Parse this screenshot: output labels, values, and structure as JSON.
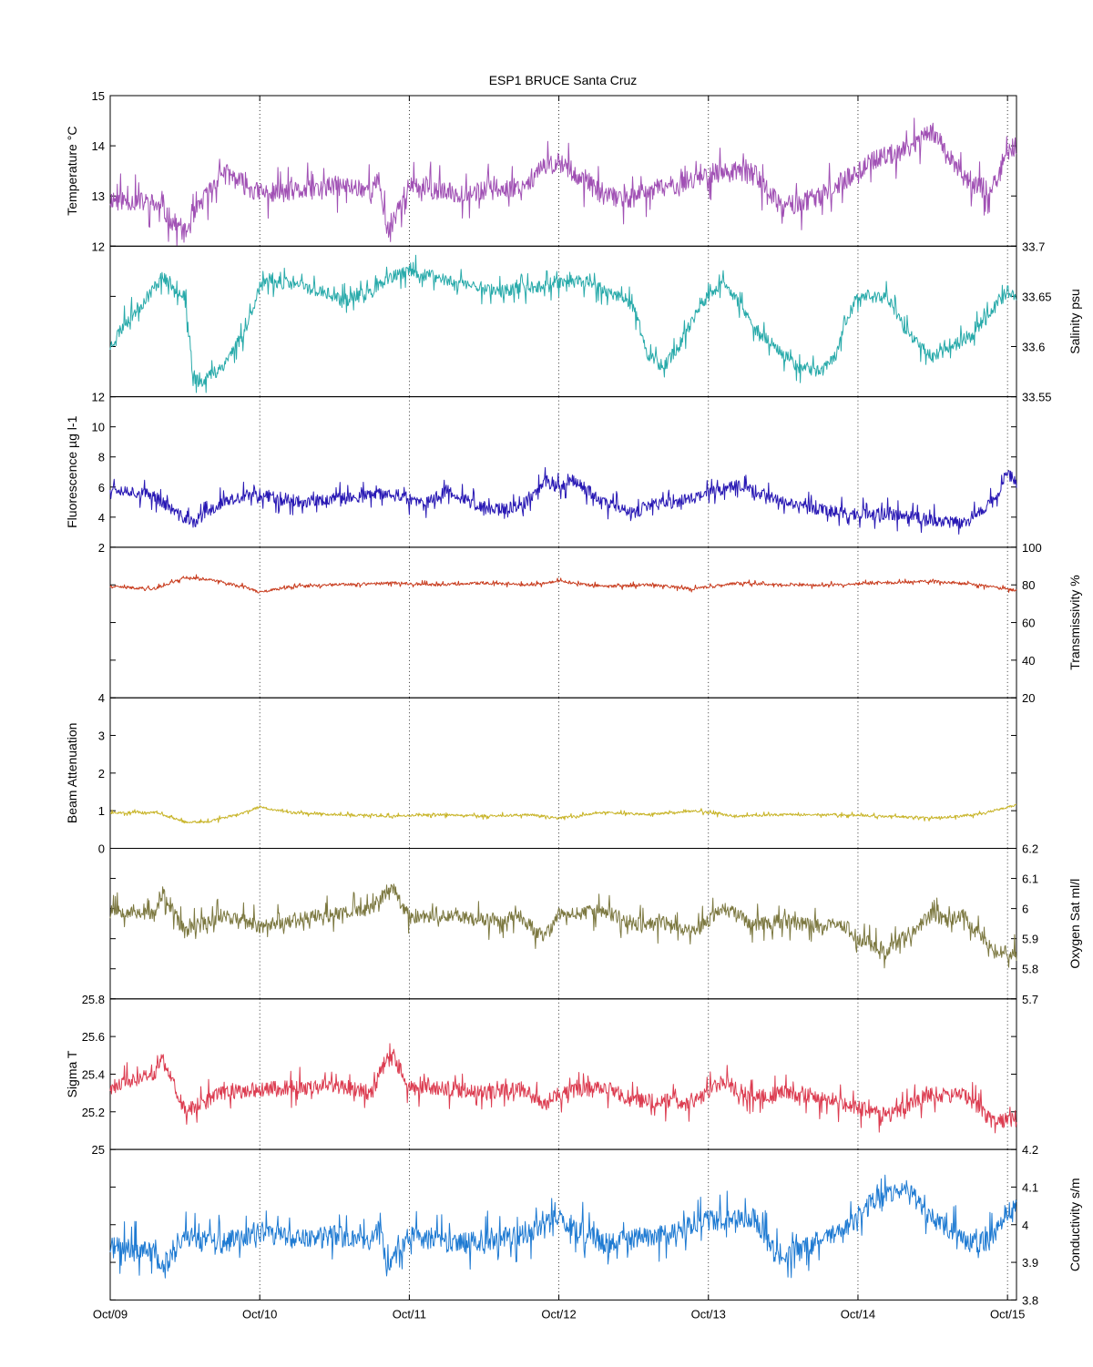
{
  "title": "ESP1 BRUCE Santa Cruz",
  "colors": {
    "axis": "#000000",
    "grid": "#000000",
    "background": "#ffffff"
  },
  "x_axis": {
    "range": [
      "Oct/09",
      "Oct/15"
    ],
    "ticks": [
      "Oct/09",
      "Oct/10",
      "Oct/11",
      "Oct/12",
      "Oct/13",
      "Oct/14",
      "Oct/15"
    ]
  },
  "chart_data": [
    {
      "type": "line",
      "id": "temperature",
      "ylabel": "Temperature °C",
      "ylabel_side": "left",
      "ylim": [
        12,
        15
      ],
      "yticks": [
        12,
        13,
        14,
        15
      ],
      "color": "#a050b4",
      "series": [
        {
          "x": [
            0,
            0.3,
            0.5,
            0.6,
            0.75,
            1.0,
            1.3,
            1.5,
            1.75,
            1.8,
            1.85,
            2.0,
            2.3,
            2.5,
            2.75,
            2.9,
            3.0,
            3.3,
            3.5,
            3.6,
            3.75,
            3.9,
            4.0,
            4.3,
            4.45,
            4.5,
            4.75,
            4.9,
            5.0,
            5.1,
            5.3,
            5.5,
            5.75,
            5.9,
            6.0,
            6.06
          ],
          "values": [
            12.95,
            12.85,
            12.25,
            12.8,
            13.5,
            13.05,
            13.1,
            13.2,
            13.15,
            13.3,
            12.3,
            13.2,
            13.05,
            13.1,
            13.2,
            13.55,
            13.7,
            13.0,
            12.95,
            13.1,
            13.2,
            13.35,
            13.45,
            13.5,
            12.9,
            12.75,
            13.0,
            13.3,
            13.5,
            13.7,
            13.9,
            14.3,
            13.2,
            13.15,
            13.9,
            14.0
          ]
        }
      ],
      "noise": 0.25,
      "seed": 11
    },
    {
      "type": "line",
      "id": "salinity",
      "ylabel": "Salinity psu",
      "ylabel_side": "right",
      "ylim": [
        33.55,
        33.7
      ],
      "yticks": [
        33.55,
        33.6,
        33.65,
        33.7
      ],
      "color": "#28aaaa",
      "series": [
        {
          "x": [
            0,
            0.1,
            0.2,
            0.35,
            0.5,
            0.55,
            0.6,
            0.75,
            0.9,
            1.0,
            1.1,
            1.3,
            1.5,
            1.55,
            1.75,
            1.9,
            2.0,
            2.3,
            2.6,
            2.85,
            3.0,
            3.2,
            3.5,
            3.6,
            3.7,
            3.8,
            3.95,
            4.1,
            4.3,
            4.45,
            4.6,
            4.75,
            4.85,
            4.9,
            5.0,
            5.2,
            5.3,
            5.5,
            5.75,
            6.0,
            6.06
          ],
          "values": [
            33.6,
            33.625,
            33.64,
            33.67,
            33.65,
            33.57,
            33.565,
            33.58,
            33.615,
            33.66,
            33.665,
            33.66,
            33.65,
            33.645,
            33.655,
            33.67,
            33.675,
            33.665,
            33.655,
            33.66,
            33.665,
            33.665,
            33.64,
            33.59,
            33.58,
            33.6,
            33.64,
            33.665,
            33.62,
            33.6,
            33.58,
            33.575,
            33.59,
            33.62,
            33.65,
            33.65,
            33.62,
            33.59,
            33.61,
            33.655,
            33.65
          ]
        }
      ],
      "noise": 0.008,
      "seed": 23
    },
    {
      "type": "line",
      "id": "fluorescence",
      "ylabel": "Fluorescence µg l-1",
      "ylabel_side": "left",
      "ylim": [
        2,
        12
      ],
      "yticks": [
        2,
        4,
        6,
        8,
        10,
        12
      ],
      "color": "#2818b4",
      "series": [
        {
          "x": [
            0,
            0.3,
            0.45,
            0.55,
            0.75,
            1.0,
            1.3,
            1.6,
            1.9,
            2.1,
            2.25,
            2.5,
            2.75,
            2.9,
            3.0,
            3.1,
            3.3,
            3.5,
            3.6,
            3.8,
            4.0,
            4.2,
            4.5,
            4.75,
            4.95,
            5.2,
            5.5,
            5.7,
            5.9,
            6.0,
            6.06
          ],
          "values": [
            6.0,
            5.4,
            4.2,
            3.6,
            5.0,
            5.5,
            5.0,
            5.3,
            5.6,
            4.8,
            5.8,
            4.5,
            4.6,
            6.4,
            6.0,
            6.5,
            5.0,
            4.2,
            4.8,
            5.0,
            5.6,
            6.2,
            5.0,
            4.5,
            4.2,
            4.2,
            3.8,
            3.6,
            5.0,
            7.0,
            6.2
          ]
        }
      ],
      "noise": 0.5,
      "seed": 37
    },
    {
      "type": "line",
      "id": "transmissivity",
      "ylabel": "Transmissivity %",
      "ylabel_side": "right",
      "ylim": [
        20,
        100
      ],
      "yticks": [
        20,
        40,
        60,
        80,
        100
      ],
      "color": "#c83c1e",
      "series": [
        {
          "x": [
            0,
            0.3,
            0.5,
            0.65,
            0.9,
            1.0,
            1.2,
            1.5,
            1.9,
            2.2,
            2.5,
            2.8,
            3.0,
            3.3,
            3.6,
            3.9,
            4.2,
            4.5,
            4.8,
            5.2,
            5.5,
            5.8,
            6.06
          ],
          "values": [
            79,
            78,
            84,
            83,
            79,
            76,
            79,
            80,
            81,
            80,
            81,
            80,
            82,
            79,
            80,
            78,
            81,
            80,
            80,
            81,
            82,
            80,
            77
          ]
        }
      ],
      "noise": 0.9,
      "seed": 41
    },
    {
      "type": "line",
      "id": "beam_attenuation",
      "ylabel": "Beam Attenuation",
      "ylabel_side": "left",
      "ylim": [
        0,
        4
      ],
      "yticks": [
        0,
        1,
        2,
        3,
        4
      ],
      "color": "#c8b428",
      "series": [
        {
          "x": [
            0,
            0.3,
            0.5,
            0.65,
            0.9,
            1.0,
            1.2,
            1.5,
            1.9,
            2.2,
            2.5,
            2.8,
            3.0,
            3.3,
            3.6,
            3.9,
            4.2,
            4.5,
            4.8,
            5.2,
            5.5,
            5.8,
            6.06
          ],
          "values": [
            0.95,
            0.95,
            0.7,
            0.7,
            0.95,
            1.1,
            0.95,
            0.9,
            0.85,
            0.9,
            0.85,
            0.9,
            0.8,
            0.95,
            0.9,
            1.0,
            0.85,
            0.9,
            0.9,
            0.85,
            0.8,
            0.9,
            1.15
          ]
        }
      ],
      "noise": 0.04,
      "seed": 43
    },
    {
      "type": "line",
      "id": "oxygen_sat",
      "ylabel": "Oxygen Sat ml/l",
      "ylabel_side": "right",
      "ylim": [
        5.7,
        6.2
      ],
      "yticks": [
        5.7,
        5.8,
        5.9,
        6.0,
        6.1,
        6.2
      ],
      "color": "#7c7840",
      "series": [
        {
          "x": [
            0,
            0.3,
            0.35,
            0.5,
            0.75,
            1.0,
            1.3,
            1.5,
            1.75,
            1.85,
            1.9,
            2.0,
            2.3,
            2.5,
            2.75,
            2.9,
            3.0,
            3.3,
            3.5,
            3.75,
            3.9,
            4.1,
            4.3,
            4.5,
            4.75,
            4.9,
            5.0,
            5.2,
            5.5,
            5.6,
            5.7,
            5.9,
            6.06
          ],
          "values": [
            6.0,
            5.98,
            6.05,
            5.92,
            5.98,
            5.94,
            5.97,
            5.98,
            6.0,
            6.06,
            6.06,
            5.97,
            5.98,
            5.96,
            5.97,
            5.9,
            5.98,
            5.99,
            5.95,
            5.95,
            5.92,
            6.0,
            5.95,
            5.96,
            5.94,
            5.95,
            5.9,
            5.86,
            5.98,
            5.96,
            5.98,
            5.86,
            5.85
          ]
        }
      ],
      "noise": 0.03,
      "seed": 53
    },
    {
      "type": "line",
      "id": "sigma_t",
      "ylabel": "Sigma T",
      "ylabel_side": "left",
      "ylim": [
        25,
        25.8
      ],
      "yticks": [
        25,
        25.2,
        25.4,
        25.6,
        25.8
      ],
      "color": "#dc3c50",
      "series": [
        {
          "x": [
            0,
            0.3,
            0.35,
            0.5,
            0.75,
            1.0,
            1.3,
            1.5,
            1.75,
            1.85,
            1.9,
            2.0,
            2.3,
            2.5,
            2.75,
            2.9,
            3.0,
            3.3,
            3.5,
            3.75,
            3.9,
            4.1,
            4.3,
            4.5,
            4.75,
            4.9,
            5.0,
            5.2,
            5.5,
            5.6,
            5.7,
            5.9,
            6.06
          ],
          "values": [
            25.33,
            25.4,
            25.48,
            25.2,
            25.3,
            25.32,
            25.33,
            25.34,
            25.3,
            25.48,
            25.48,
            25.33,
            25.32,
            25.3,
            25.32,
            25.24,
            25.3,
            25.33,
            25.26,
            25.26,
            25.25,
            25.36,
            25.28,
            25.3,
            25.27,
            25.25,
            25.22,
            25.18,
            25.3,
            25.28,
            25.3,
            25.15,
            25.16
          ]
        }
      ],
      "noise": 0.05,
      "seed": 61
    },
    {
      "type": "line",
      "id": "conductivity",
      "ylabel": "Conductivity s/m",
      "ylabel_side": "right",
      "ylim": [
        3.8,
        4.2
      ],
      "yticks": [
        3.8,
        3.9,
        4.0,
        4.1,
        4.2
      ],
      "color": "#1e7ad2",
      "series": [
        {
          "x": [
            0,
            0.3,
            0.35,
            0.5,
            0.75,
            1.0,
            1.3,
            1.5,
            1.75,
            1.8,
            1.85,
            2.0,
            2.3,
            2.5,
            2.75,
            2.9,
            3.0,
            3.3,
            3.5,
            3.6,
            3.75,
            3.9,
            4.0,
            4.3,
            4.45,
            4.6,
            4.75,
            4.9,
            5.0,
            5.1,
            5.3,
            5.5,
            5.75,
            5.9,
            6.0,
            6.06
          ],
          "values": [
            3.94,
            3.93,
            3.88,
            3.97,
            3.95,
            3.98,
            3.96,
            3.97,
            3.96,
            4.0,
            3.89,
            3.97,
            3.95,
            3.96,
            3.97,
            4.0,
            4.02,
            3.95,
            3.96,
            3.97,
            3.97,
            4.0,
            4.01,
            4.02,
            3.92,
            3.93,
            3.96,
            3.98,
            4.03,
            4.06,
            4.1,
            4.02,
            3.95,
            3.96,
            4.04,
            4.05
          ]
        }
      ],
      "noise": 0.035,
      "seed": 71
    }
  ]
}
